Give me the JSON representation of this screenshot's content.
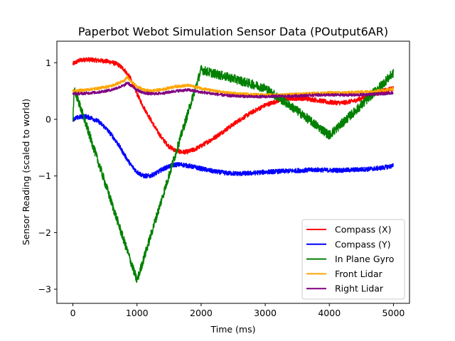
{
  "chart_data": {
    "type": "line",
    "title": "Paperbot Webot Simulation Sensor Data (POutput6AR)",
    "xlabel": "Time (ms)",
    "ylabel": "Sensor Reading (scaled to world)",
    "xlim": [
      -250,
      5250
    ],
    "ylim": [
      -3.25,
      1.38
    ],
    "xticks": [
      0,
      1000,
      2000,
      3000,
      4000,
      5000
    ],
    "xtick_labels": [
      "0",
      "1000",
      "2000",
      "3000",
      "4000",
      "5000"
    ],
    "yticks": [
      1,
      0,
      -1,
      -2,
      -3
    ],
    "ytick_labels": [
      "1",
      "0",
      "−1",
      "−2",
      "−3"
    ],
    "grid": false,
    "legend_position": "lower right",
    "series": [
      {
        "name": "Compass (X)",
        "color": "#ff0000",
        "noise": 0.04,
        "x": [
          0,
          100,
          200,
          300,
          400,
          500,
          600,
          700,
          800,
          900,
          1000,
          1100,
          1200,
          1300,
          1400,
          1500,
          1600,
          1700,
          1800,
          1900,
          2000,
          2200,
          2400,
          2600,
          2800,
          3000,
          3200,
          3400,
          3600,
          3800,
          4000,
          4200,
          4400,
          4600,
          4800,
          5000
        ],
        "y": [
          0.98,
          1.04,
          1.06,
          1.05,
          1.04,
          1.03,
          1.01,
          0.97,
          0.88,
          0.72,
          0.45,
          0.22,
          0.02,
          -0.18,
          -0.35,
          -0.48,
          -0.55,
          -0.58,
          -0.57,
          -0.53,
          -0.47,
          -0.33,
          -0.17,
          -0.01,
          0.13,
          0.25,
          0.33,
          0.37,
          0.37,
          0.34,
          0.3,
          0.29,
          0.33,
          0.41,
          0.49,
          0.55
        ]
      },
      {
        "name": "Compass (Y)",
        "color": "#0000ff",
        "noise": 0.04,
        "x": [
          0,
          100,
          200,
          300,
          400,
          500,
          600,
          700,
          800,
          900,
          1000,
          1100,
          1200,
          1300,
          1400,
          1500,
          1600,
          1700,
          1800,
          2000,
          2200,
          2400,
          2600,
          2800,
          3000,
          3200,
          3400,
          3600,
          3800,
          4000,
          4200,
          4400,
          4600,
          4800,
          5000
        ],
        "y": [
          0.0,
          0.04,
          0.05,
          0.02,
          -0.04,
          -0.14,
          -0.27,
          -0.43,
          -0.62,
          -0.8,
          -0.93,
          -1.0,
          -1.0,
          -0.95,
          -0.88,
          -0.83,
          -0.8,
          -0.8,
          -0.82,
          -0.87,
          -0.92,
          -0.95,
          -0.96,
          -0.95,
          -0.93,
          -0.92,
          -0.91,
          -0.9,
          -0.89,
          -0.9,
          -0.9,
          -0.89,
          -0.88,
          -0.86,
          -0.82
        ]
      },
      {
        "name": "In Plane Gyro",
        "color": "#008000",
        "noise": 0.08,
        "x": [
          0,
          20,
          1000,
          2000,
          2100,
          2500,
          3000,
          3500,
          4000,
          4500,
          5000
        ],
        "y": [
          0.0,
          0.55,
          -2.85,
          0.88,
          0.84,
          0.72,
          0.55,
          0.15,
          -0.28,
          0.25,
          0.82
        ]
      },
      {
        "name": "Front Lidar",
        "color": "#ffa500",
        "noise": 0.025,
        "x": [
          0,
          200,
          400,
          600,
          800,
          850,
          900,
          1000,
          1100,
          1200,
          1400,
          1600,
          1800,
          2000,
          2200,
          2400,
          2600,
          2800,
          3000,
          3200,
          3400,
          3600,
          3800,
          4000,
          4200,
          4400,
          4600,
          4800,
          5000
        ],
        "y": [
          0.5,
          0.52,
          0.55,
          0.59,
          0.68,
          0.75,
          0.68,
          0.58,
          0.52,
          0.5,
          0.53,
          0.58,
          0.6,
          0.55,
          0.5,
          0.47,
          0.45,
          0.44,
          0.43,
          0.43,
          0.44,
          0.45,
          0.46,
          0.47,
          0.47,
          0.48,
          0.49,
          0.51,
          0.54
        ]
      },
      {
        "name": "Right Lidar",
        "color": "#800080",
        "noise": 0.025,
        "x": [
          0,
          200,
          400,
          600,
          800,
          850,
          900,
          1000,
          1100,
          1200,
          1400,
          1600,
          1800,
          2000,
          2200,
          2400,
          2600,
          2800,
          3000,
          3200,
          3400,
          3600,
          3800,
          4000,
          4200,
          4400,
          4600,
          4800,
          5000
        ],
        "y": [
          0.45,
          0.46,
          0.48,
          0.52,
          0.6,
          0.65,
          0.6,
          0.52,
          0.47,
          0.45,
          0.46,
          0.5,
          0.52,
          0.48,
          0.45,
          0.42,
          0.41,
          0.4,
          0.4,
          0.41,
          0.41,
          0.42,
          0.43,
          0.43,
          0.43,
          0.43,
          0.44,
          0.45,
          0.47
        ]
      }
    ]
  }
}
